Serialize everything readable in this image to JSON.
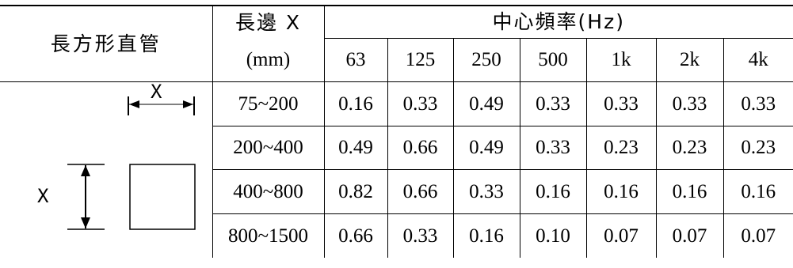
{
  "header": {
    "duct_type": "長方形直管",
    "long_side_label": "長邊 X",
    "long_side_unit": "(mm)",
    "center_freq_label": "中心頻率(Hz)",
    "frequencies": [
      "63",
      "125",
      "250",
      "500",
      "1k",
      "2k",
      "4k"
    ]
  },
  "diagram": {
    "width_label": "X",
    "height_label": "X"
  },
  "rows": [
    {
      "range": "75~200",
      "values": [
        "0.16",
        "0.33",
        "0.49",
        "0.33",
        "0.33",
        "0.33",
        "0.33"
      ]
    },
    {
      "range": "200~400",
      "values": [
        "0.49",
        "0.66",
        "0.49",
        "0.33",
        "0.23",
        "0.23",
        "0.23"
      ]
    },
    {
      "range": "400~800",
      "values": [
        "0.82",
        "0.66",
        "0.33",
        "0.16",
        "0.16",
        "0.16",
        "0.16"
      ]
    },
    {
      "range": "800~1500",
      "values": [
        "0.66",
        "0.33",
        "0.16",
        "0.10",
        "0.07",
        "0.07",
        "0.07"
      ]
    }
  ]
}
